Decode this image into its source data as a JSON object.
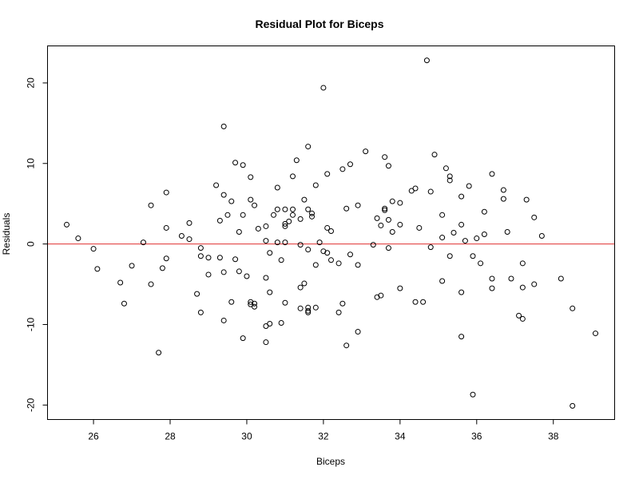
{
  "chart_data": {
    "type": "scatter",
    "title": "Residual Plot for Biceps",
    "xlabel": "Biceps",
    "ylabel": "Residuals",
    "xlim": [
      24.8,
      39.6
    ],
    "ylim": [
      -21.8,
      24.6
    ],
    "x_ticks": [
      26,
      28,
      30,
      32,
      34,
      36,
      38
    ],
    "y_ticks": [
      -20,
      -10,
      0,
      10,
      20
    ],
    "grid": false,
    "reference_line": {
      "y": 0,
      "color": "#e03030"
    },
    "point_color": "#000000",
    "points": [
      [
        25.3,
        2.4
      ],
      [
        25.6,
        0.7
      ],
      [
        26.0,
        -0.6
      ],
      [
        26.1,
        -3.1
      ],
      [
        26.7,
        -4.8
      ],
      [
        26.8,
        -7.4
      ],
      [
        27.0,
        -2.7
      ],
      [
        27.3,
        0.2
      ],
      [
        27.5,
        4.8
      ],
      [
        27.5,
        -5.0
      ],
      [
        27.7,
        -13.5
      ],
      [
        27.8,
        -3.0
      ],
      [
        27.9,
        6.4
      ],
      [
        27.9,
        2.0
      ],
      [
        27.9,
        -1.8
      ],
      [
        28.3,
        1.0
      ],
      [
        28.5,
        2.6
      ],
      [
        28.5,
        0.6
      ],
      [
        28.7,
        -6.2
      ],
      [
        28.8,
        -0.5
      ],
      [
        28.8,
        -1.5
      ],
      [
        28.8,
        -8.5
      ],
      [
        29.0,
        -1.7
      ],
      [
        29.0,
        -3.8
      ],
      [
        29.2,
        7.3
      ],
      [
        29.3,
        2.9
      ],
      [
        29.3,
        -1.7
      ],
      [
        29.4,
        14.6
      ],
      [
        29.4,
        6.1
      ],
      [
        29.4,
        -3.5
      ],
      [
        29.4,
        -9.5
      ],
      [
        29.5,
        3.6
      ],
      [
        29.6,
        5.3
      ],
      [
        29.6,
        -7.2
      ],
      [
        29.7,
        10.1
      ],
      [
        29.7,
        -1.9
      ],
      [
        29.8,
        1.5
      ],
      [
        29.8,
        -3.4
      ],
      [
        29.9,
        9.8
      ],
      [
        29.9,
        3.6
      ],
      [
        29.9,
        -11.7
      ],
      [
        30.0,
        -4.0
      ],
      [
        30.1,
        8.3
      ],
      [
        30.1,
        5.5
      ],
      [
        30.1,
        -7.2
      ],
      [
        30.1,
        -7.5
      ],
      [
        30.2,
        4.8
      ],
      [
        30.2,
        -7.4
      ],
      [
        30.2,
        -7.8
      ],
      [
        30.3,
        1.9
      ],
      [
        30.5,
        2.2
      ],
      [
        30.5,
        0.4
      ],
      [
        30.5,
        -4.2
      ],
      [
        30.5,
        -10.2
      ],
      [
        30.5,
        -12.2
      ],
      [
        30.6,
        -1.1
      ],
      [
        30.6,
        -6.0
      ],
      [
        30.6,
        -9.9
      ],
      [
        30.7,
        3.6
      ],
      [
        30.8,
        7.0
      ],
      [
        30.8,
        4.3
      ],
      [
        30.8,
        0.2
      ],
      [
        30.9,
        -2.0
      ],
      [
        30.9,
        -9.8
      ],
      [
        31.0,
        4.3
      ],
      [
        31.0,
        2.5
      ],
      [
        31.0,
        2.2
      ],
      [
        31.0,
        0.2
      ],
      [
        31.0,
        -7.3
      ],
      [
        31.1,
        2.8
      ],
      [
        31.2,
        8.4
      ],
      [
        31.2,
        4.3
      ],
      [
        31.2,
        3.6
      ],
      [
        31.3,
        10.4
      ],
      [
        31.4,
        3.1
      ],
      [
        31.4,
        -0.1
      ],
      [
        31.4,
        -5.4
      ],
      [
        31.4,
        -8.0
      ],
      [
        31.5,
        5.5
      ],
      [
        31.5,
        -4.9
      ],
      [
        31.6,
        12.1
      ],
      [
        31.6,
        4.3
      ],
      [
        31.6,
        -0.7
      ],
      [
        31.6,
        -7.9
      ],
      [
        31.6,
        -8.3
      ],
      [
        31.6,
        -8.5
      ],
      [
        31.7,
        3.8
      ],
      [
        31.7,
        3.4
      ],
      [
        31.8,
        7.3
      ],
      [
        31.8,
        -2.6
      ],
      [
        31.8,
        -7.9
      ],
      [
        31.9,
        0.2
      ],
      [
        32.0,
        19.4
      ],
      [
        32.0,
        -0.9
      ],
      [
        32.1,
        8.7
      ],
      [
        32.1,
        2.0
      ],
      [
        32.1,
        -1.1
      ],
      [
        32.2,
        1.6
      ],
      [
        32.2,
        -2.0
      ],
      [
        32.4,
        -2.4
      ],
      [
        32.4,
        -8.5
      ],
      [
        32.5,
        9.3
      ],
      [
        32.5,
        -7.4
      ],
      [
        32.6,
        4.4
      ],
      [
        32.6,
        -12.6
      ],
      [
        32.7,
        9.9
      ],
      [
        32.7,
        -1.3
      ],
      [
        32.9,
        4.8
      ],
      [
        32.9,
        -2.6
      ],
      [
        32.9,
        -10.9
      ],
      [
        33.1,
        11.5
      ],
      [
        33.3,
        -0.1
      ],
      [
        33.4,
        3.2
      ],
      [
        33.4,
        -6.6
      ],
      [
        33.5,
        2.3
      ],
      [
        33.5,
        -6.4
      ],
      [
        33.6,
        10.8
      ],
      [
        33.6,
        4.4
      ],
      [
        33.6,
        4.2
      ],
      [
        33.7,
        9.7
      ],
      [
        33.7,
        3.0
      ],
      [
        33.7,
        -0.5
      ],
      [
        33.8,
        5.3
      ],
      [
        33.8,
        1.5
      ],
      [
        34.0,
        5.1
      ],
      [
        34.0,
        2.4
      ],
      [
        34.0,
        -5.5
      ],
      [
        34.3,
        6.6
      ],
      [
        34.4,
        6.9
      ],
      [
        34.4,
        -7.2
      ],
      [
        34.5,
        2.0
      ],
      [
        34.6,
        -7.2
      ],
      [
        34.7,
        22.8
      ],
      [
        34.8,
        6.5
      ],
      [
        34.8,
        -0.4
      ],
      [
        34.9,
        11.1
      ],
      [
        35.1,
        3.6
      ],
      [
        35.1,
        0.8
      ],
      [
        35.1,
        -4.6
      ],
      [
        35.2,
        9.4
      ],
      [
        35.3,
        8.4
      ],
      [
        35.3,
        7.9
      ],
      [
        35.3,
        -1.5
      ],
      [
        35.4,
        1.4
      ],
      [
        35.6,
        5.9
      ],
      [
        35.6,
        2.4
      ],
      [
        35.6,
        -6.0
      ],
      [
        35.6,
        -11.5
      ],
      [
        35.7,
        0.4
      ],
      [
        35.8,
        7.2
      ],
      [
        35.9,
        -1.5
      ],
      [
        35.9,
        -18.7
      ],
      [
        36.0,
        0.7
      ],
      [
        36.1,
        -2.4
      ],
      [
        36.2,
        4.0
      ],
      [
        36.2,
        1.2
      ],
      [
        36.4,
        8.7
      ],
      [
        36.4,
        -4.3
      ],
      [
        36.4,
        -5.5
      ],
      [
        36.7,
        6.7
      ],
      [
        36.7,
        5.6
      ],
      [
        36.8,
        1.5
      ],
      [
        36.9,
        -4.3
      ],
      [
        37.1,
        -8.9
      ],
      [
        37.2,
        -2.4
      ],
      [
        37.2,
        -5.4
      ],
      [
        37.2,
        -9.3
      ],
      [
        37.3,
        5.5
      ],
      [
        37.5,
        3.3
      ],
      [
        37.5,
        -5.0
      ],
      [
        37.7,
        1.0
      ],
      [
        38.2,
        -4.3
      ],
      [
        38.5,
        -8.0
      ],
      [
        38.5,
        -20.1
      ],
      [
        39.1,
        -11.1
      ]
    ]
  }
}
